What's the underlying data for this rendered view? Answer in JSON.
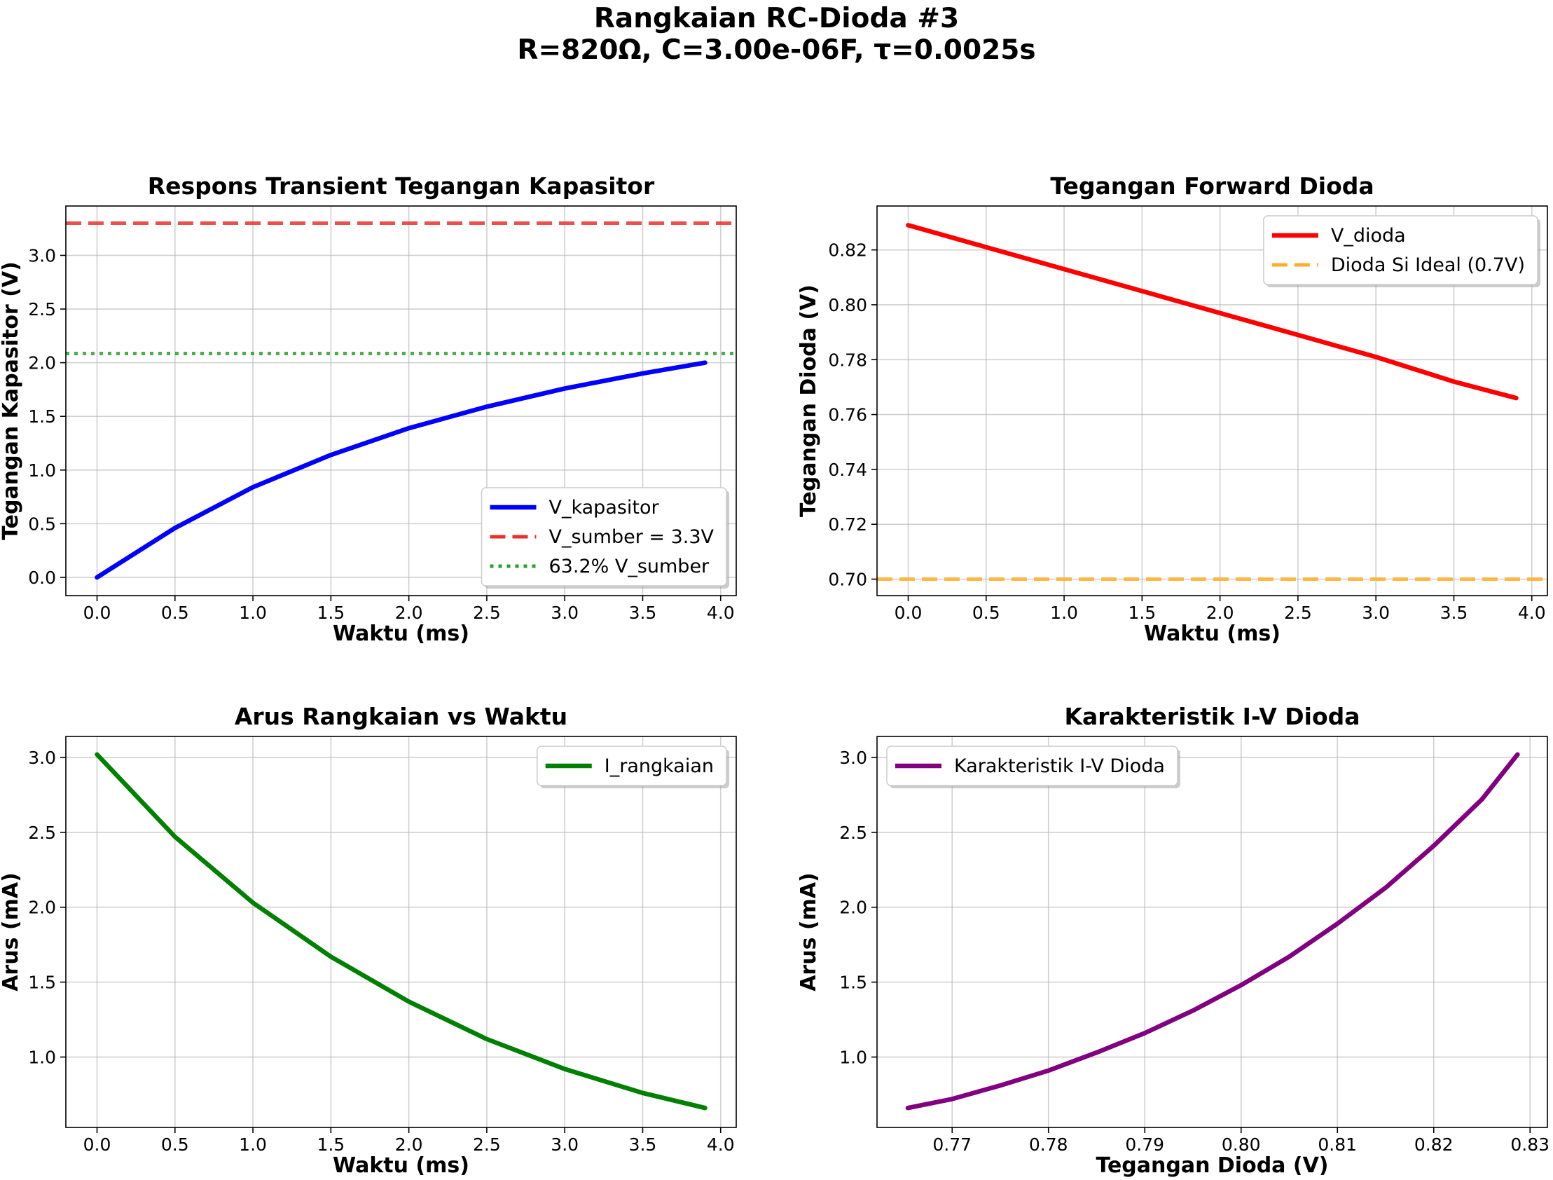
{
  "figure": {
    "title_line1": "Rangkaian RC-Dioda #3",
    "title_line2": "R=820Ω, C=3.00e-06F, τ=0.0025s"
  },
  "colors": {
    "v_kapasitor": "#0000ff",
    "v_sumber": "#e8302f",
    "v_632": "#2ca02c",
    "v_dioda": "#ff0000",
    "dioda_ideal": "#ffae29",
    "i_rangkaian": "#008000",
    "iv_dioda": "#800080"
  },
  "chart_data": [
    {
      "id": "capacitor",
      "type": "line",
      "title": "Respons Transient Tegangan Kapasitor",
      "xlabel": "Waktu (ms)",
      "ylabel": "Tegangan Kapasitor (V)",
      "xlim": [
        -0.2,
        4.1
      ],
      "ylim": [
        -0.17,
        3.46
      ],
      "xticks": [
        0.0,
        0.5,
        1.0,
        1.5,
        2.0,
        2.5,
        3.0,
        3.5,
        4.0
      ],
      "xtick_labels": [
        "0.0",
        "0.5",
        "1.0",
        "1.5",
        "2.0",
        "2.5",
        "3.0",
        "3.5",
        "4.0"
      ],
      "yticks": [
        0.0,
        0.5,
        1.0,
        1.5,
        2.0,
        2.5,
        3.0
      ],
      "ytick_labels": [
        "0.0",
        "0.5",
        "1.0",
        "1.5",
        "2.0",
        "2.5",
        "3.0"
      ],
      "grid": true,
      "legend": "lower-right",
      "series": [
        {
          "name": "V_kapasitor",
          "style": "solid",
          "color_key": "v_kapasitor",
          "x": [
            0,
            0.5,
            1.0,
            1.5,
            2.0,
            2.5,
            3.0,
            3.5,
            3.9
          ],
          "y": [
            0,
            0.46,
            0.84,
            1.14,
            1.39,
            1.59,
            1.76,
            1.9,
            2.0
          ]
        },
        {
          "name": "V_sumber = 3.3V",
          "style": "dashed",
          "color_key": "v_sumber",
          "hline": 3.3
        },
        {
          "name": "63.2% V_sumber",
          "style": "dotted",
          "color_key": "v_632",
          "hline": 2.0856
        }
      ]
    },
    {
      "id": "diode-voltage",
      "type": "line",
      "title": "Tegangan Forward Dioda",
      "xlabel": "Waktu (ms)",
      "ylabel": "Tegangan Dioda (V)",
      "xlim": [
        -0.2,
        4.1
      ],
      "ylim": [
        0.694,
        0.836
      ],
      "xticks": [
        0.0,
        0.5,
        1.0,
        1.5,
        2.0,
        2.5,
        3.0,
        3.5,
        4.0
      ],
      "xtick_labels": [
        "0.0",
        "0.5",
        "1.0",
        "1.5",
        "2.0",
        "2.5",
        "3.0",
        "3.5",
        "4.0"
      ],
      "yticks": [
        0.7,
        0.72,
        0.74,
        0.76,
        0.78,
        0.8,
        0.82
      ],
      "ytick_labels": [
        "0.70",
        "0.72",
        "0.74",
        "0.76",
        "0.78",
        "0.80",
        "0.82"
      ],
      "grid": true,
      "legend": "upper-right",
      "series": [
        {
          "name": "V_dioda",
          "style": "solid",
          "color_key": "v_dioda",
          "x": [
            0,
            0.5,
            1.0,
            1.5,
            2.0,
            2.5,
            3.0,
            3.5,
            3.9
          ],
          "y": [
            0.829,
            0.821,
            0.813,
            0.805,
            0.797,
            0.789,
            0.781,
            0.772,
            0.766
          ]
        },
        {
          "name": "Dioda Si Ideal (0.7V)",
          "style": "dashed",
          "color_key": "dioda_ideal",
          "hline": 0.7
        }
      ]
    },
    {
      "id": "current",
      "type": "line",
      "title": "Arus Rangkaian vs Waktu",
      "xlabel": "Waktu (ms)",
      "ylabel": "Arus (mA)",
      "xlim": [
        -0.2,
        4.1
      ],
      "ylim": [
        0.53,
        3.14
      ],
      "xticks": [
        0.0,
        0.5,
        1.0,
        1.5,
        2.0,
        2.5,
        3.0,
        3.5,
        4.0
      ],
      "xtick_labels": [
        "0.0",
        "0.5",
        "1.0",
        "1.5",
        "2.0",
        "2.5",
        "3.0",
        "3.5",
        "4.0"
      ],
      "yticks": [
        1.0,
        1.5,
        2.0,
        2.5,
        3.0
      ],
      "ytick_labels": [
        "1.0",
        "1.5",
        "2.0",
        "2.5",
        "3.0"
      ],
      "grid": true,
      "legend": "upper-right",
      "series": [
        {
          "name": "I_rangkaian",
          "style": "solid",
          "color_key": "i_rangkaian",
          "x": [
            0,
            0.5,
            1.0,
            1.5,
            2.0,
            2.5,
            3.0,
            3.5,
            3.9
          ],
          "y": [
            3.02,
            2.47,
            2.03,
            1.67,
            1.37,
            1.12,
            0.92,
            0.76,
            0.66
          ]
        }
      ]
    },
    {
      "id": "iv-curve",
      "type": "line",
      "title": "Karakteristik I-V Dioda",
      "xlabel": "Tegangan Dioda (V)",
      "ylabel": "Arus (mA)",
      "xlim": [
        0.7622,
        0.8318
      ],
      "ylim": [
        0.53,
        3.14
      ],
      "xticks": [
        0.77,
        0.78,
        0.79,
        0.8,
        0.81,
        0.82,
        0.83
      ],
      "xtick_labels": [
        "0.77",
        "0.78",
        "0.79",
        "0.80",
        "0.81",
        "0.82",
        "0.83"
      ],
      "yticks": [
        1.0,
        1.5,
        2.0,
        2.5,
        3.0
      ],
      "ytick_labels": [
        "1.0",
        "1.5",
        "2.0",
        "2.5",
        "3.0"
      ],
      "grid": true,
      "legend": "upper-left",
      "series": [
        {
          "name": "Karakteristik I-V Dioda",
          "style": "solid",
          "color_key": "iv_dioda",
          "x": [
            0.7654,
            0.77,
            0.775,
            0.78,
            0.785,
            0.79,
            0.795,
            0.8,
            0.805,
            0.81,
            0.815,
            0.82,
            0.825,
            0.8287
          ],
          "y": [
            0.66,
            0.72,
            0.81,
            0.91,
            1.03,
            1.16,
            1.31,
            1.48,
            1.67,
            1.89,
            2.13,
            2.41,
            2.72,
            3.02
          ]
        }
      ]
    }
  ]
}
